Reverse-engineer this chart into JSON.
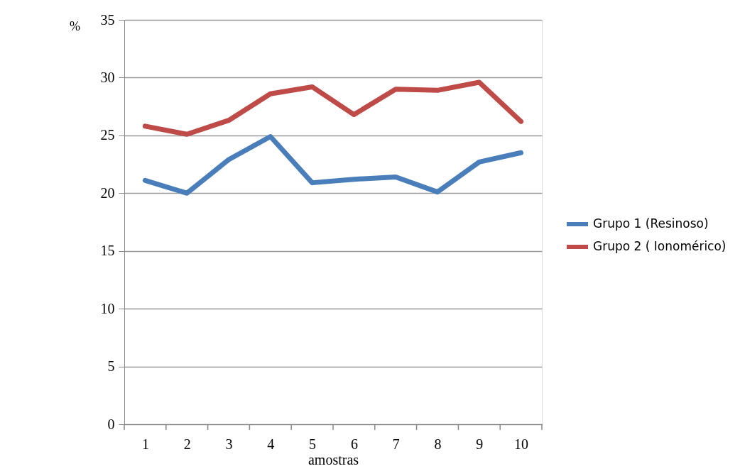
{
  "chart_data": {
    "type": "line",
    "xlabel": "amostras",
    "ylabel": "%",
    "categories": [
      "1",
      "2",
      "3",
      "4",
      "5",
      "6",
      "7",
      "8",
      "9",
      "10"
    ],
    "series": [
      {
        "name": "Grupo 1 (Resinoso)",
        "color": "#4a7ebb",
        "values": [
          21.1,
          20.0,
          22.9,
          24.9,
          20.9,
          21.2,
          21.4,
          20.1,
          22.7,
          23.5
        ]
      },
      {
        "name": "Grupo 2 ( Ionomérico)",
        "color": "#be4b48",
        "values": [
          25.8,
          25.1,
          26.3,
          28.6,
          29.2,
          26.8,
          29.0,
          28.9,
          29.6,
          26.2
        ]
      }
    ],
    "ylim": [
      0,
      35
    ],
    "yticks": [
      0,
      5,
      10,
      15,
      20,
      25,
      30,
      35
    ],
    "grid": "y",
    "legend": "right",
    "marker": "none",
    "line_style": "solid"
  }
}
